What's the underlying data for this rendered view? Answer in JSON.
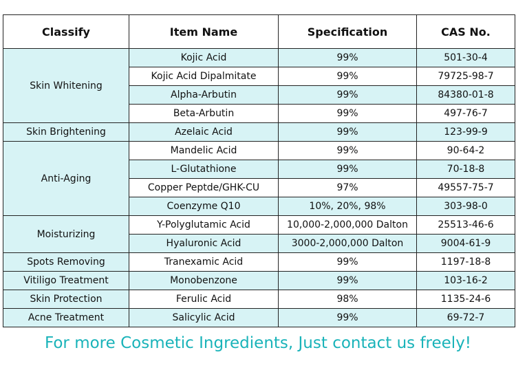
{
  "table": {
    "headers": [
      "Classify",
      "Item Name",
      "Specification",
      "CAS No."
    ],
    "rows": [
      {
        "classify": "Skin Whitening",
        "span": 4,
        "item": "Kojic Acid",
        "spec": "99%",
        "cas": "501-30-4"
      },
      {
        "classify": null,
        "item": "Kojic Acid Dipalmitate",
        "spec": "99%",
        "cas": "79725-98-7"
      },
      {
        "classify": null,
        "item": "Alpha-Arbutin",
        "spec": "99%",
        "cas": "84380-01-8"
      },
      {
        "classify": null,
        "item": "Beta-Arbutin",
        "spec": "99%",
        "cas": "497-76-7"
      },
      {
        "classify": "Skin Brightening",
        "span": 1,
        "item": "Azelaic Acid",
        "spec": "99%",
        "cas": "123-99-9"
      },
      {
        "classify": "Anti-Aging",
        "span": 4,
        "item": "Mandelic Acid",
        "spec": "99%",
        "cas": "90-64-2"
      },
      {
        "classify": null,
        "item": "L-Glutathione",
        "spec": "99%",
        "cas": "70-18-8"
      },
      {
        "classify": null,
        "item": "Copper Peptde/GHK-CU",
        "spec": "97%",
        "cas": "49557-75-7"
      },
      {
        "classify": null,
        "item": "Coenzyme Q10",
        "spec": "10%, 20%, 98%",
        "cas": "303-98-0"
      },
      {
        "classify": "Moisturizing",
        "span": 2,
        "item": "Y-Polyglutamic Acid",
        "spec": "10,000-2,000,000 Dalton",
        "cas": "25513-46-6"
      },
      {
        "classify": null,
        "item": "Hyaluronic Acid",
        "spec": "3000-2,000,000 Dalton",
        "cas": "9004-61-9"
      },
      {
        "classify": "Spots Removing",
        "span": 1,
        "item": "Tranexamic Acid",
        "spec": "99%",
        "cas": "1197-18-8"
      },
      {
        "classify": "Vitiligo Treatment",
        "span": 1,
        "item": "Monobenzone",
        "spec": "99%",
        "cas": "103-16-2"
      },
      {
        "classify": "Skin Protection",
        "span": 1,
        "item": "Ferulic Acid",
        "spec": "98%",
        "cas": "1135-24-6"
      },
      {
        "classify": "Acne Treatment",
        "span": 1,
        "item": "Salicylic Acid",
        "spec": "99%",
        "cas": "69-72-7"
      }
    ]
  },
  "footer": {
    "text": "For more Cosmetic Ingredients, Just contact us freely!",
    "color": "#19b3b9"
  },
  "colors": {
    "highlight": "#d7f3f5",
    "border": "#222222"
  }
}
